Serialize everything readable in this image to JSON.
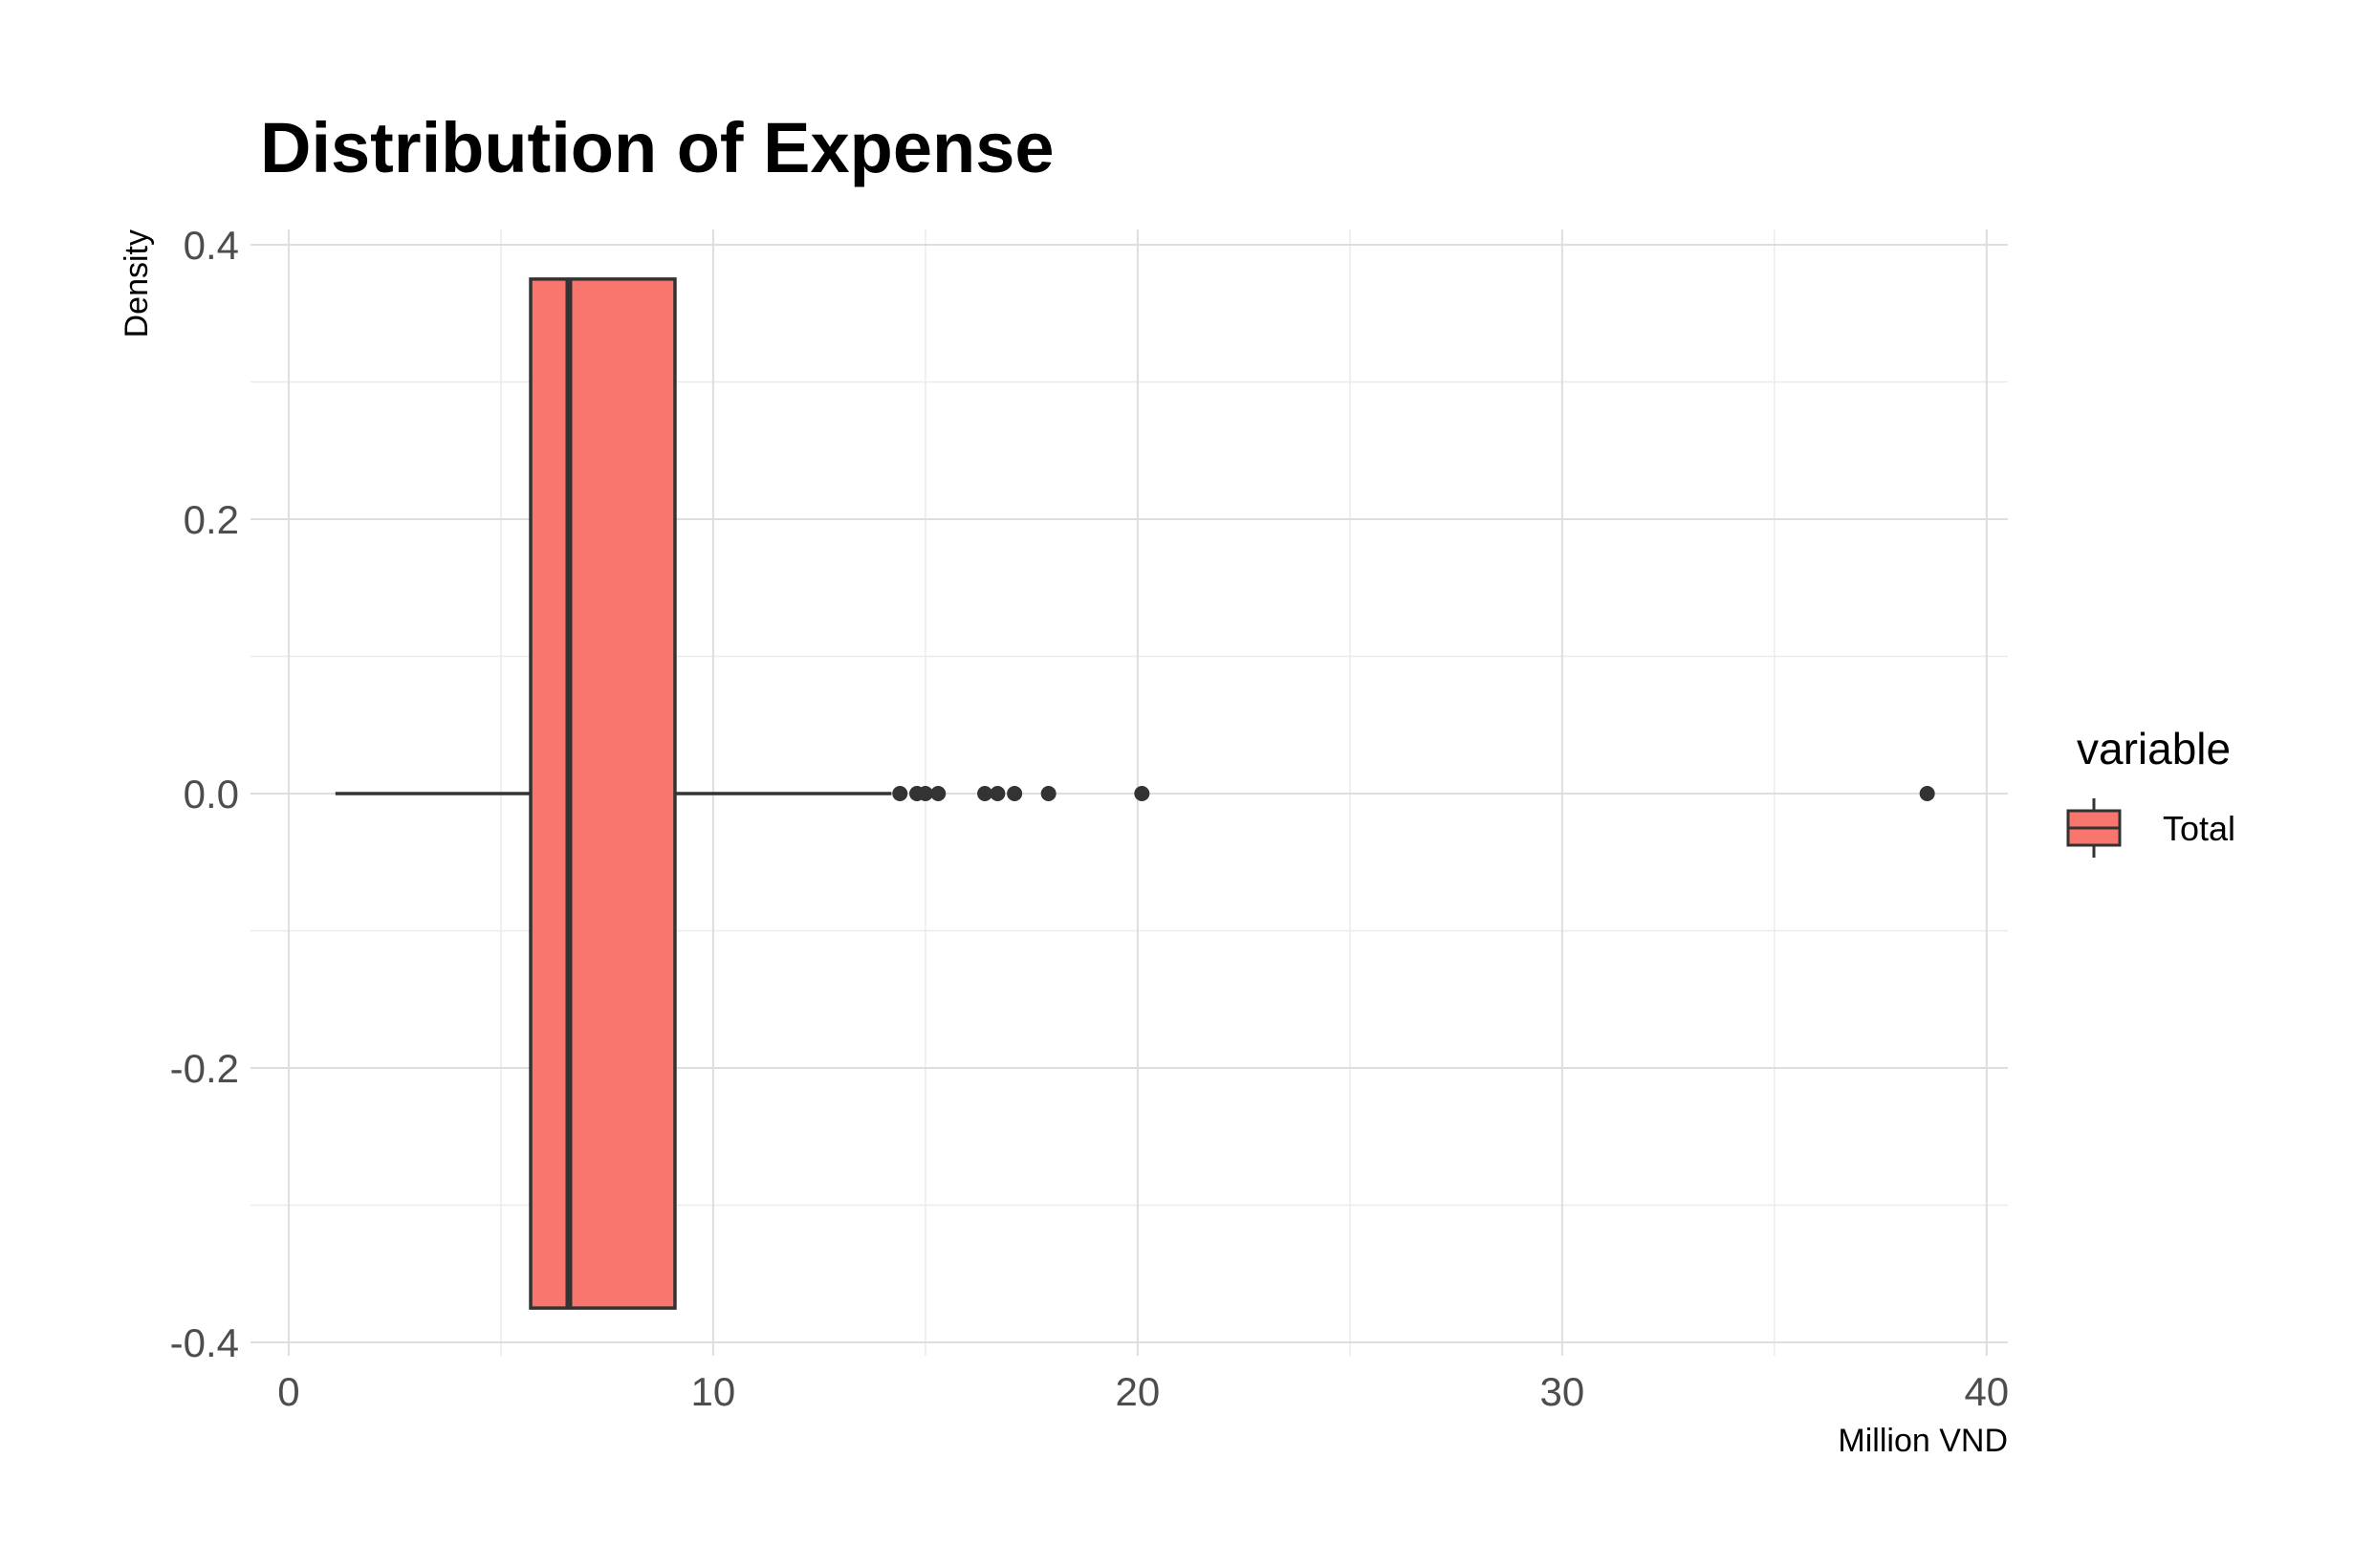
{
  "chart_data": {
    "type": "boxplot",
    "title": "Distribution of Expense",
    "xlabel": "Million VND",
    "ylabel": "Density",
    "xlim": [
      -0.9,
      40.5
    ],
    "ylim": [
      -0.4,
      0.4
    ],
    "x_ticks": [
      0,
      10,
      20,
      30,
      40
    ],
    "x_minor_ticks": [
      5,
      15,
      25,
      35
    ],
    "y_ticks": [
      0.4,
      0.2,
      0.0,
      -0.2,
      -0.4
    ],
    "y_tick_labels": [
      "0.4",
      "0.2",
      "0.0",
      "-0.2",
      "-0.4"
    ],
    "y_minor_ticks": [
      0.3,
      0.1,
      -0.1,
      -0.3
    ],
    "grid": true,
    "legend": {
      "title": "variable",
      "position": "right"
    },
    "series": [
      {
        "name": "Total",
        "color": "#F8766D",
        "outline_color": "#333333",
        "min": 1.1,
        "q1": 5.7,
        "median": 6.6,
        "q3": 9.1,
        "whisker_high": 14.2,
        "box_ymin": -0.375,
        "box_ymax": 0.375,
        "y": 0,
        "outliers": [
          14.4,
          14.8,
          15.0,
          15.3,
          16.4,
          16.7,
          17.1,
          17.9,
          20.1,
          38.6
        ]
      }
    ]
  }
}
